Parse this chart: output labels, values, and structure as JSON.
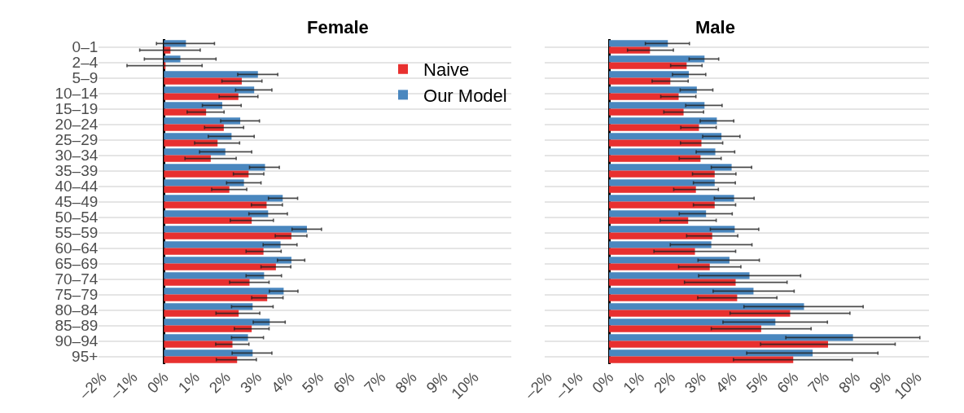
{
  "chart_data": [
    {
      "type": "bar",
      "title": "Female",
      "orientation": "horizontal",
      "grid": "y",
      "legend": "top right",
      "categories": [
        "0–1",
        "2–4",
        "5–9",
        "10–14",
        "15–19",
        "20–24",
        "25–29",
        "30–34",
        "35–39",
        "40–44",
        "45–49",
        "50–54",
        "55–59",
        "60–64",
        "65–69",
        "70–74",
        "75–79",
        "80–84",
        "85–89",
        "90–94",
        "95+"
      ],
      "xlim": [
        -2.1,
        11.2
      ],
      "xticks": [
        {
          "value": -2,
          "label": "–2%"
        },
        {
          "value": -1,
          "label": "–1%"
        },
        {
          "value": 0,
          "label": "0%"
        },
        {
          "value": 1,
          "label": "1%"
        },
        {
          "value": 2,
          "label": "2%"
        },
        {
          "value": 3,
          "label": "3%"
        },
        {
          "value": 4,
          "label": "4%"
        },
        {
          "value": 5,
          "label": "5%"
        },
        {
          "value": 6,
          "label": "6%"
        },
        {
          "value": 7,
          "label": "7%"
        },
        {
          "value": 8,
          "label": "8%"
        },
        {
          "value": 9,
          "label": "9%"
        },
        {
          "value": 10,
          "label": "10%"
        }
      ],
      "series": [
        {
          "name": "Naive",
          "color": "#e8302f",
          "values": [
            0.21,
            0.03,
            2.51,
            2.4,
            1.36,
            1.93,
            1.73,
            1.51,
            2.73,
            2.11,
            3.31,
            2.83,
            4.11,
            3.21,
            3.61,
            2.76,
            3.33,
            2.41,
            2.83,
            2.21,
            2.36
          ],
          "errors": [
            [
              -0.78,
              1.17
            ],
            [
              -1.19,
              1.23
            ],
            [
              1.87,
              3.16
            ],
            [
              1.78,
              3.03
            ],
            [
              0.75,
              1.94
            ],
            [
              1.31,
              2.57
            ],
            [
              0.99,
              2.44
            ],
            [
              0.68,
              2.33
            ],
            [
              2.24,
              3.22
            ],
            [
              1.54,
              2.67
            ],
            [
              2.82,
              3.82
            ],
            [
              2.14,
              3.53
            ],
            [
              3.59,
              4.61
            ],
            [
              2.65,
              3.78
            ],
            [
              3.13,
              4.09
            ],
            [
              2.12,
              3.39
            ],
            [
              2.83,
              3.84
            ],
            [
              1.68,
              3.09
            ],
            [
              2.27,
              3.39
            ],
            [
              1.67,
              2.74
            ],
            [
              1.69,
              2.98
            ]
          ]
        },
        {
          "name": "Our Model",
          "color": "#4a87bf",
          "values": [
            0.71,
            0.53,
            3.03,
            2.91,
            1.88,
            2.46,
            2.18,
            1.98,
            3.26,
            2.58,
            3.83,
            3.36,
            4.61,
            3.76,
            4.11,
            3.23,
            3.86,
            2.86,
            3.41,
            2.71,
            2.86
          ],
          "errors": [
            [
              -0.24,
              1.63
            ],
            [
              -0.63,
              1.68
            ],
            [
              2.38,
              3.67
            ],
            [
              2.31,
              3.48
            ],
            [
              1.24,
              2.49
            ],
            [
              1.83,
              3.08
            ],
            [
              1.43,
              2.91
            ],
            [
              1.15,
              2.83
            ],
            [
              2.76,
              3.72
            ],
            [
              2.02,
              3.13
            ],
            [
              3.37,
              4.31
            ],
            [
              2.74,
              3.98
            ],
            [
              4.13,
              5.08
            ],
            [
              3.2,
              4.29
            ],
            [
              3.66,
              4.54
            ],
            [
              2.65,
              3.79
            ],
            [
              3.4,
              4.32
            ],
            [
              2.18,
              3.52
            ],
            [
              2.88,
              3.91
            ],
            [
              2.18,
              3.21
            ],
            [
              2.2,
              3.48
            ]
          ]
        }
      ]
    },
    {
      "type": "bar",
      "title": "Male",
      "orientation": "horizontal",
      "grid": "y",
      "tick_labels": "x",
      "categories": [
        "0–1",
        "2–4",
        "5–9",
        "10–14",
        "15–19",
        "20–24",
        "25–29",
        "30–34",
        "35–39",
        "40–44",
        "45–49",
        "50–54",
        "55–59",
        "60–64",
        "65–69",
        "70–74",
        "75–79",
        "80–84",
        "85–89",
        "90–94",
        "95+"
      ],
      "xlim": [
        -2.1,
        10.4
      ],
      "xticks": [
        {
          "value": -2,
          "label": "–2%"
        },
        {
          "value": -1,
          "label": "–1%"
        },
        {
          "value": 0,
          "label": "0%"
        },
        {
          "value": 1,
          "label": "1%"
        },
        {
          "value": 2,
          "label": "2%"
        },
        {
          "value": 3,
          "label": "3%"
        },
        {
          "value": 4,
          "label": "4%"
        },
        {
          "value": 5,
          "label": "5%"
        },
        {
          "value": 6,
          "label": "6%"
        },
        {
          "value": 7,
          "label": "7%"
        },
        {
          "value": 8,
          "label": "8%"
        },
        {
          "value": 9,
          "label": "9%"
        },
        {
          "value": 10,
          "label": "10%"
        }
      ],
      "series": [
        {
          "color": "#e8302f",
          "values": [
            1.33,
            2.52,
            1.99,
            2.26,
            2.42,
            2.92,
            3.0,
            2.97,
            3.43,
            2.82,
            3.43,
            2.57,
            3.35,
            2.79,
            3.27,
            4.11,
            4.16,
            5.88,
            4.94,
            7.11,
            5.98
          ],
          "errors": [
            [
              0.6,
              2.09
            ],
            [
              2.0,
              3.02
            ],
            [
              1.4,
              2.57
            ],
            [
              1.68,
              2.82
            ],
            [
              1.78,
              3.07
            ],
            [
              2.33,
              3.48
            ],
            [
              2.32,
              3.69
            ],
            [
              2.28,
              3.64
            ],
            [
              2.71,
              4.12
            ],
            [
              2.1,
              3.55
            ],
            [
              2.74,
              4.11
            ],
            [
              1.66,
              3.48
            ],
            [
              2.52,
              4.18
            ],
            [
              1.46,
              4.11
            ],
            [
              2.26,
              4.28
            ],
            [
              2.45,
              5.78
            ],
            [
              2.88,
              5.45
            ],
            [
              3.93,
              7.82
            ],
            [
              3.32,
              6.56
            ],
            [
              4.92,
              9.29
            ],
            [
              4.04,
              7.9
            ]
          ]
        },
        {
          "color": "#4a87bf",
          "values": [
            1.91,
            3.1,
            2.59,
            2.85,
            3.1,
            3.5,
            3.65,
            3.45,
            3.98,
            3.43,
            4.06,
            3.15,
            4.08,
            3.32,
            3.91,
            4.56,
            4.69,
            6.33,
            5.4,
            7.92,
            6.61
          ],
          "errors": [
            [
              1.18,
              2.61
            ],
            [
              2.6,
              3.56
            ],
            [
              2.06,
              3.14
            ],
            [
              2.31,
              3.37
            ],
            [
              2.49,
              3.67
            ],
            [
              2.96,
              4.05
            ],
            [
              3.04,
              4.25
            ],
            [
              2.83,
              4.08
            ],
            [
              3.32,
              4.63
            ],
            [
              2.74,
              4.1
            ],
            [
              3.42,
              4.71
            ],
            [
              2.28,
              4.0
            ],
            [
              3.29,
              4.86
            ],
            [
              1.99,
              4.64
            ],
            [
              2.89,
              4.88
            ],
            [
              2.91,
              6.22
            ],
            [
              3.38,
              6.01
            ],
            [
              4.38,
              8.25
            ],
            [
              3.7,
              7.09
            ],
            [
              5.74,
              10.09
            ],
            [
              4.47,
              8.73
            ]
          ]
        }
      ]
    }
  ]
}
